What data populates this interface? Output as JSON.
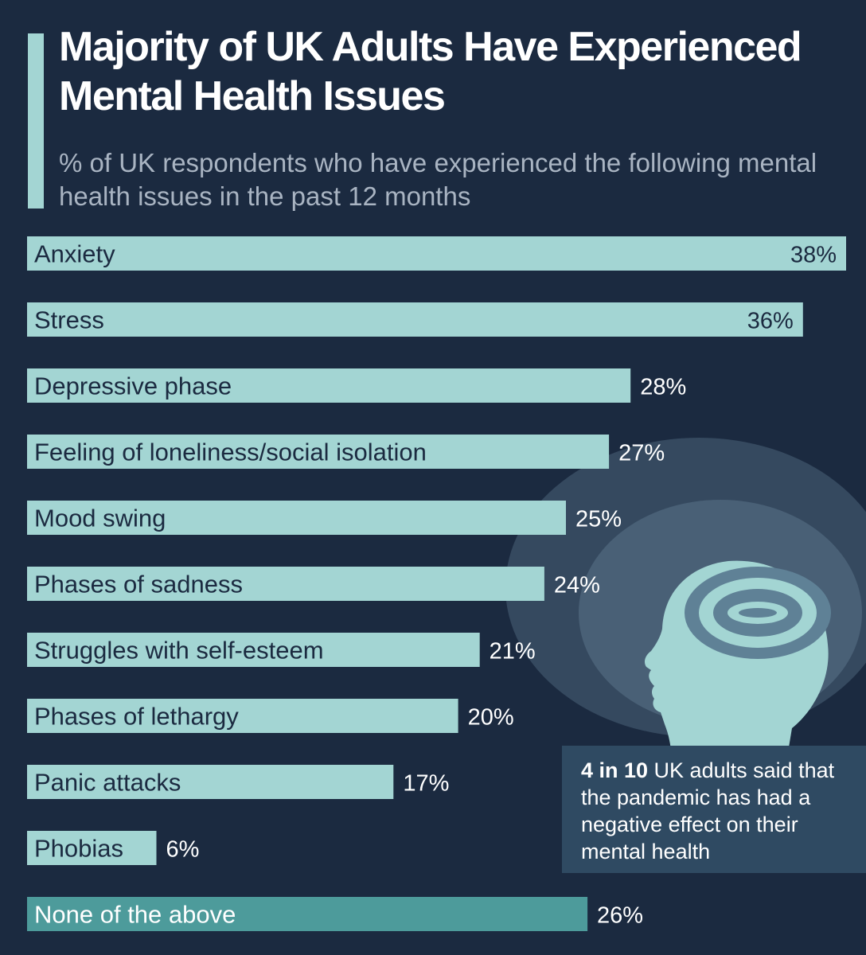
{
  "title": "Majority of UK Adults Have Experienced Mental Health Issues",
  "subtitle": "% of UK respondents who have experienced the following mental health issues in the past 12 months",
  "callout": {
    "bold": "4 in 10",
    "text": " UK adults said that the pandemic has had a negative effect on their mental health"
  },
  "colors": {
    "background": "#1b2a40",
    "bar": "#a3d5d3",
    "bar_highlight": "#4d9b9b",
    "callout_background": "#2f4a62",
    "head_illustration": "#a3d5d3"
  },
  "chart_data": {
    "type": "bar",
    "orientation": "horizontal",
    "title": "Majority of UK Adults Have Experienced Mental Health Issues",
    "subtitle": "% of UK respondents who have experienced the following mental health issues in the past 12 months",
    "categories": [
      "Anxiety",
      "Stress",
      "Depressive phase",
      "Feeling of loneliness/social isolation",
      "Mood swing",
      "Phases of sadness",
      "Struggles with self-esteem",
      "Phases of lethargy",
      "Panic attacks",
      "Phobias",
      "None of the above"
    ],
    "values": [
      38,
      36,
      28,
      27,
      25,
      24,
      21,
      20,
      17,
      6,
      26
    ],
    "value_labels": [
      "38%",
      "36%",
      "28%",
      "27%",
      "25%",
      "24%",
      "21%",
      "20%",
      "17%",
      "6%",
      "26%"
    ],
    "unit": "%",
    "highlight": "None of the above",
    "xlim": [
      0,
      38
    ],
    "grid": false,
    "legend": "none"
  }
}
